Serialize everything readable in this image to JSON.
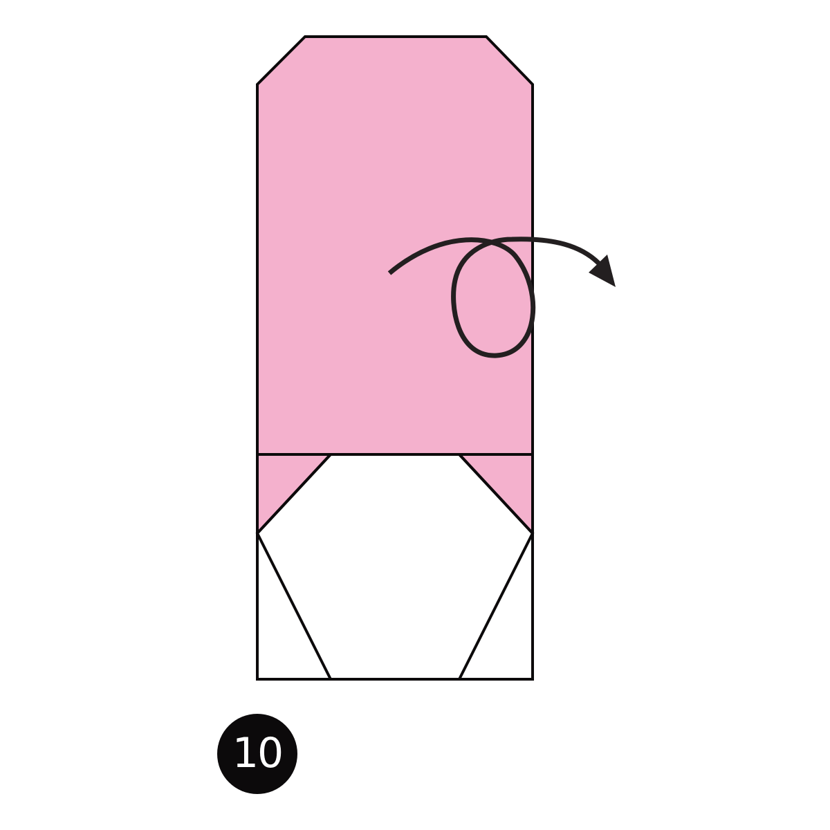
{
  "step": {
    "number": "10"
  },
  "colors": {
    "paper_color_side": "#f4b1cd",
    "paper_white_side": "#ffffff",
    "outline": "#0c0a0b",
    "badge_background": "#0c0a0b",
    "badge_text": "#ffffff"
  },
  "icons": {
    "fold_arrow": "turn-over-arrow-icon"
  }
}
